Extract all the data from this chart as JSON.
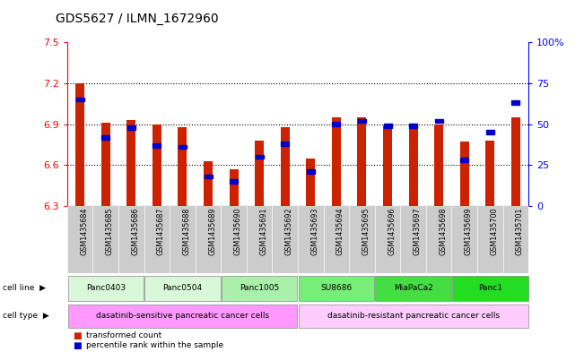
{
  "title": "GDS5627 / ILMN_1672960",
  "samples": [
    "GSM1435684",
    "GSM1435685",
    "GSM1435686",
    "GSM1435687",
    "GSM1435688",
    "GSM1435689",
    "GSM1435690",
    "GSM1435691",
    "GSM1435692",
    "GSM1435693",
    "GSM1435694",
    "GSM1435695",
    "GSM1435696",
    "GSM1435697",
    "GSM1435698",
    "GSM1435699",
    "GSM1435700",
    "GSM1435701"
  ],
  "red_values": [
    7.2,
    6.91,
    6.93,
    6.9,
    6.88,
    6.63,
    6.57,
    6.78,
    6.88,
    6.65,
    6.95,
    6.95,
    6.89,
    6.89,
    6.9,
    6.77,
    6.78,
    6.95
  ],
  "blue_values": [
    65,
    42,
    48,
    37,
    36,
    18,
    15,
    30,
    38,
    21,
    50,
    52,
    49,
    49,
    52,
    28,
    45,
    63
  ],
  "ymin": 6.3,
  "ymax": 7.5,
  "yticks": [
    6.3,
    6.6,
    6.9,
    7.2,
    7.5
  ],
  "y2ticks": [
    0,
    25,
    50,
    75,
    100
  ],
  "y2labels": [
    "0",
    "25",
    "50",
    "75",
    "100%"
  ],
  "cell_lines": [
    {
      "label": "Panc0403",
      "start": 0,
      "end": 3,
      "color": "#d9f7d9"
    },
    {
      "label": "Panc0504",
      "start": 3,
      "end": 6,
      "color": "#d9f7d9"
    },
    {
      "label": "Panc1005",
      "start": 6,
      "end": 9,
      "color": "#aaf0aa"
    },
    {
      "label": "SU8686",
      "start": 9,
      "end": 12,
      "color": "#77ee77"
    },
    {
      "label": "MiaPaCa2",
      "start": 12,
      "end": 15,
      "color": "#44dd44"
    },
    {
      "label": "Panc1",
      "start": 15,
      "end": 18,
      "color": "#22dd22"
    }
  ],
  "cell_types": [
    {
      "label": "dasatinib-sensitive pancreatic cancer cells",
      "start": 0,
      "end": 9,
      "color": "#ff99ff"
    },
    {
      "label": "dasatinib-resistant pancreatic cancer cells",
      "start": 9,
      "end": 18,
      "color": "#ffccff"
    }
  ],
  "bar_color": "#cc2200",
  "blue_color": "#0000cc",
  "bg_color": "#ffffff",
  "sample_bg_color": "#cccccc"
}
